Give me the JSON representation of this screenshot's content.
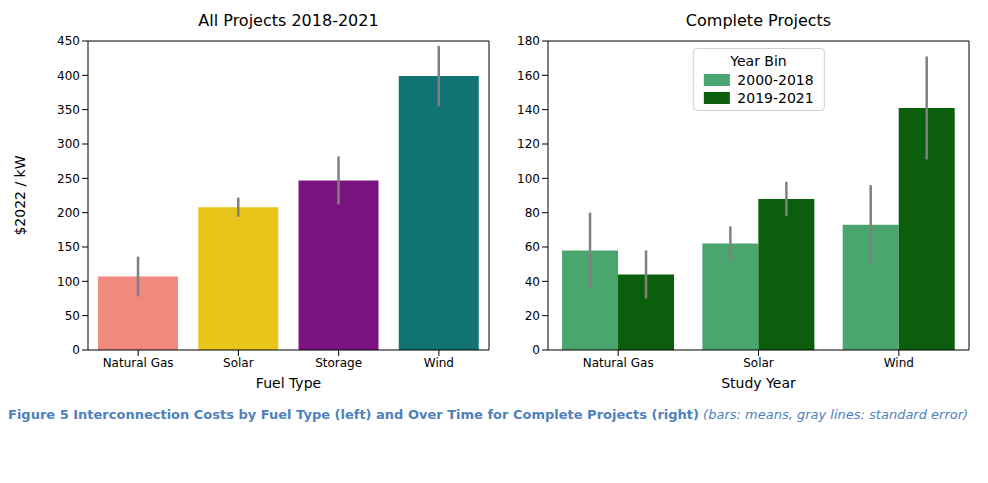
{
  "chart_data": [
    {
      "type": "bar",
      "title": "All Projects 2018-2021",
      "x_label": "Fuel Type",
      "y_label": "$2022 / kW",
      "categories": [
        "Natural Gas",
        "Solar",
        "Storage",
        "Wind"
      ],
      "values": [
        107,
        208,
        247,
        399
      ],
      "errors": [
        29,
        14,
        35,
        44
      ],
      "colors": [
        "#f08a7e",
        "#e8c51a",
        "#7a127f",
        "#117373"
      ],
      "ylim": [
        0,
        450
      ],
      "yticks": [
        0,
        50,
        100,
        150,
        200,
        250,
        300,
        350,
        400,
        450
      ]
    },
    {
      "type": "bar",
      "title": "Complete Projects",
      "x_label": "Study Year",
      "categories": [
        "Natural Gas",
        "Solar",
        "Wind"
      ],
      "series": [
        {
          "name": "2000-2018",
          "color": "#4aa56e",
          "values": [
            58,
            62,
            73
          ],
          "errors": [
            22,
            10,
            23
          ]
        },
        {
          "name": "2019-2021",
          "color": "#0b5e0b",
          "values": [
            44,
            88,
            141
          ],
          "errors": [
            14,
            10,
            30
          ]
        }
      ],
      "legend": "top",
      "legend_title": "Year Bin",
      "ylim": [
        0,
        180
      ],
      "yticks": [
        0,
        20,
        40,
        60,
        80,
        100,
        120,
        140,
        160,
        180
      ]
    }
  ],
  "caption": "Figure 5 Interconnection Costs by Fuel Type (left) and Over Time for Complete Projects (right)",
  "caption_note": "(bars: means, gray lines: standard error)"
}
